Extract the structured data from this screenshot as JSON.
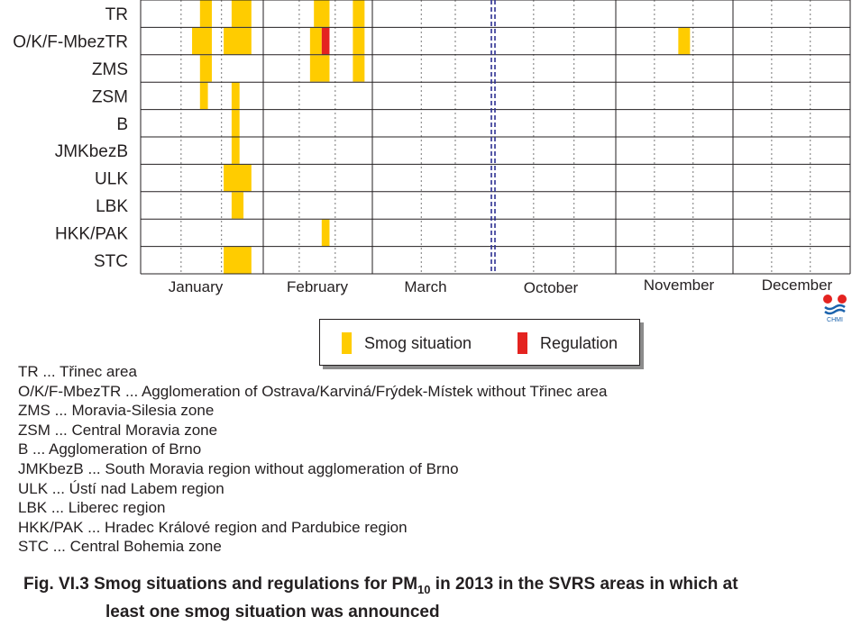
{
  "chart_data": {
    "type": "timeline",
    "title": "",
    "rows": [
      "TR",
      "O/K/F-MbezTR",
      "ZMS",
      "ZSM",
      "B",
      "JMKbezB",
      "ULK",
      "LBK",
      "HKK/PAK",
      "STC"
    ],
    "months": [
      "January",
      "February",
      "March",
      "October",
      "November",
      "December"
    ],
    "month_days": [
      31,
      28,
      31,
      31,
      30,
      31
    ],
    "break_after_month": "March",
    "events": [
      {
        "row": "TR",
        "kind": "smog",
        "month": "January",
        "start_day": 16,
        "end_day": 18
      },
      {
        "row": "TR",
        "kind": "smog",
        "month": "January",
        "start_day": 24,
        "end_day": 28
      },
      {
        "row": "TR",
        "kind": "smog",
        "month": "February",
        "start_day": 14,
        "end_day": 17
      },
      {
        "row": "TR",
        "kind": "smog",
        "month": "February",
        "start_day": 24,
        "end_day": 26
      },
      {
        "row": "O/K/F-MbezTR",
        "kind": "smog",
        "month": "January",
        "start_day": 14,
        "end_day": 18
      },
      {
        "row": "O/K/F-MbezTR",
        "kind": "smog",
        "month": "January",
        "start_day": 22,
        "end_day": 28
      },
      {
        "row": "O/K/F-MbezTR",
        "kind": "smog",
        "month": "February",
        "start_day": 13,
        "end_day": 15
      },
      {
        "row": "O/K/F-MbezTR",
        "kind": "regulation",
        "month": "February",
        "start_day": 16,
        "end_day": 17
      },
      {
        "row": "O/K/F-MbezTR",
        "kind": "smog",
        "month": "February",
        "start_day": 24,
        "end_day": 26
      },
      {
        "row": "O/K/F-MbezTR",
        "kind": "smog",
        "month": "November",
        "start_day": 17,
        "end_day": 19
      },
      {
        "row": "ZMS",
        "kind": "smog",
        "month": "January",
        "start_day": 16,
        "end_day": 18
      },
      {
        "row": "ZMS",
        "kind": "smog",
        "month": "February",
        "start_day": 13,
        "end_day": 17
      },
      {
        "row": "ZMS",
        "kind": "smog",
        "month": "February",
        "start_day": 24,
        "end_day": 26
      },
      {
        "row": "ZSM",
        "kind": "smog",
        "month": "January",
        "start_day": 16,
        "end_day": 17
      },
      {
        "row": "ZSM",
        "kind": "smog",
        "month": "January",
        "start_day": 24,
        "end_day": 25
      },
      {
        "row": "B",
        "kind": "smog",
        "month": "January",
        "start_day": 24,
        "end_day": 25
      },
      {
        "row": "JMKbezB",
        "kind": "smog",
        "month": "January",
        "start_day": 24,
        "end_day": 25
      },
      {
        "row": "ULK",
        "kind": "smog",
        "month": "January",
        "start_day": 22,
        "end_day": 28
      },
      {
        "row": "LBK",
        "kind": "smog",
        "month": "January",
        "start_day": 24,
        "end_day": 26
      },
      {
        "row": "HKK/PAK",
        "kind": "smog",
        "month": "February",
        "start_day": 16,
        "end_day": 17
      },
      {
        "row": "STC",
        "kind": "smog",
        "month": "January",
        "start_day": 22,
        "end_day": 28
      }
    ]
  },
  "legend": {
    "smog_label": "Smog situation",
    "regulation_label": "Regulation",
    "smog_color": "#ffcc00",
    "regulation_color": "#e42320"
  },
  "logo": {
    "text": "CHMI"
  },
  "abbreviations": [
    "TR ... Třinec area",
    "O/K/F-MbezTR ... Agglomeration of Ostrava/Karviná/Frýdek-Místek without Třinec area",
    "ZMS ... Moravia-Silesia zone",
    "ZSM ... Central Moravia zone",
    "B ... Agglomeration of Brno",
    "JMKbezB ... South Moravia region without agglomeration of Brno",
    "ULK ... Ústí nad Labem region",
    "LBK ... Liberec region",
    "HKK/PAK ... Hradec Králové region and Pardubice region",
    "STC ... Central Bohemia zone"
  ],
  "caption": {
    "line1_prefix": "Fig. VI.3  Smog situations and regulations for PM",
    "line1_sub": "10",
    "line1_suffix": " in 2013 in the SVRS areas in which at",
    "line2": "least one smog situation was announced"
  }
}
